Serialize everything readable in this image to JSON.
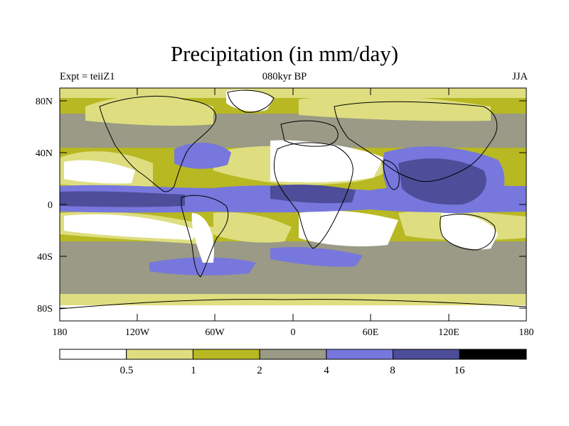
{
  "title": "Precipitation (in mm/day)",
  "left_label": "Expt = teiiZ1",
  "center_label": "080kyr BP",
  "right_label": "JJA",
  "lat_ticks": [
    "80N",
    "40N",
    "0",
    "40S",
    "80S"
  ],
  "lon_ticks": [
    "180",
    "120W",
    "60W",
    "0",
    "60E",
    "120E",
    "180"
  ],
  "colorbar": {
    "labels": [
      "0.5",
      "1",
      "2",
      "4",
      "8",
      "16"
    ],
    "colors": [
      "#ffffff",
      "#dede80",
      "#b8b822",
      "#9a9a86",
      "#7777dd",
      "#4d4d99",
      "#000000"
    ]
  },
  "colors": {
    "very_low": "#ffffff",
    "low": "#dede80",
    "mid_low": "#b8b822",
    "mid": "#9a9a86",
    "high": "#7777dd",
    "very_high": "#4d4d99",
    "extreme": "#000000"
  }
}
